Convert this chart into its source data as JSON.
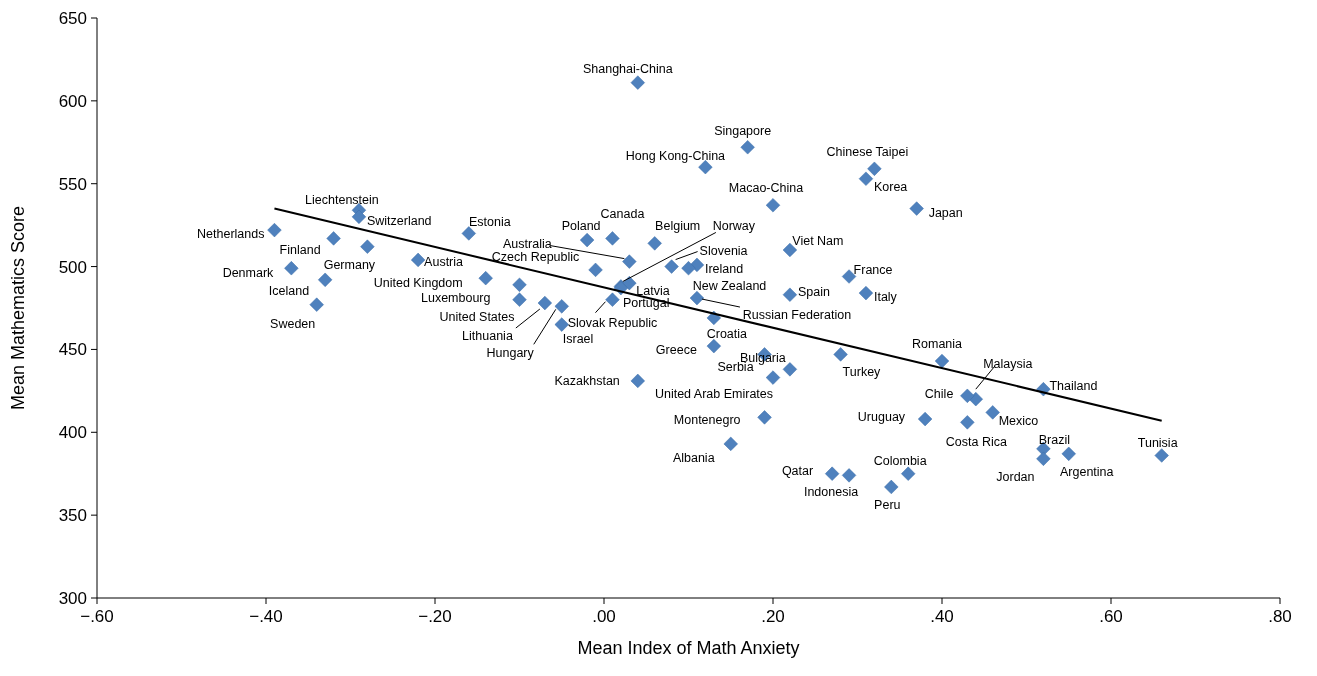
{
  "chart_data": {
    "type": "scatter",
    "xlabel": "Mean Index of Math Anxiety",
    "ylabel": "Mean Mathematics Score",
    "xlim": [
      -0.6,
      0.8
    ],
    "xticks": [
      {
        "value": -0.6,
        "label": "−.60"
      },
      {
        "value": -0.4,
        "label": "−.40"
      },
      {
        "value": -0.2,
        "label": "−.20"
      },
      {
        "value": 0,
        "label": ".00"
      },
      {
        "value": 0.2,
        "label": ".20"
      },
      {
        "value": 0.4,
        "label": ".40"
      },
      {
        "value": 0.6,
        "label": ".60"
      },
      {
        "value": 0.8,
        "label": ".80"
      }
    ],
    "ylim": [
      300,
      650
    ],
    "yticks": [
      300,
      350,
      400,
      450,
      500,
      550,
      600,
      650
    ],
    "marker": "diamond",
    "series": [
      {
        "type": "scatter",
        "color": "#4f81bd",
        "x": [
          0.04,
          0.17,
          0.12,
          0.32,
          0.31,
          0.2,
          0.37,
          -0.29,
          -0.29,
          -0.39,
          -0.32,
          -0.28,
          -0.16,
          -0.02,
          0.01,
          0.06,
          0.22,
          0.03,
          0.02,
          0.08,
          0.11,
          -0.37,
          -0.33,
          -0.34,
          -0.22,
          -0.01,
          0.1,
          0.29,
          -0.14,
          -0.1,
          -0.1,
          -0.07,
          -0.05,
          -0.05,
          0.03,
          0.02,
          0.01,
          0.22,
          0.31,
          0.11,
          0.13,
          0.13,
          0.19,
          0.22,
          0.28,
          0.4,
          0.2,
          0.04,
          0.44,
          0.43,
          0.52,
          0.46,
          0.19,
          0.38,
          0.43,
          0.15,
          0.52,
          0.55,
          0.66,
          0.52,
          0.27,
          0.29,
          0.36,
          0.34
        ],
        "values": [
          611,
          572,
          560,
          559,
          553,
          537,
          535,
          534,
          530,
          522,
          517,
          512,
          520,
          516,
          517,
          514,
          510,
          503,
          488,
          500,
          501,
          499,
          492,
          477,
          504,
          498,
          499,
          494,
          493,
          489,
          480,
          478,
          476,
          465,
          490,
          487,
          480,
          483,
          484,
          481,
          469,
          452,
          447,
          438,
          447,
          443,
          433,
          431,
          420,
          422,
          426,
          412,
          409,
          408,
          406,
          393,
          390,
          387,
          386,
          384,
          375,
          374,
          375,
          367
        ]
      },
      {
        "type": "line",
        "color": "#000000",
        "marker": "none",
        "line_style": "solid",
        "x": [
          -0.39,
          0.66
        ],
        "values": [
          535,
          407
        ]
      }
    ],
    "annotations": [
      {
        "text": "Shanghai-China",
        "x": 0.04,
        "y": 611
      },
      {
        "text": "Singapore",
        "x": 0.17,
        "y": 572
      },
      {
        "text": "Hong Kong-China",
        "x": 0.12,
        "y": 560
      },
      {
        "text": "Chinese Taipei",
        "x": 0.32,
        "y": 559
      },
      {
        "text": "Korea",
        "x": 0.31,
        "y": 553
      },
      {
        "text": "Macao-China",
        "x": 0.2,
        "y": 537
      },
      {
        "text": "Japan",
        "x": 0.37,
        "y": 535
      },
      {
        "text": "Liechtenstein",
        "x": -0.29,
        "y": 534
      },
      {
        "text": "Switzerland",
        "x": -0.29,
        "y": 530
      },
      {
        "text": "Netherlands",
        "x": -0.39,
        "y": 522
      },
      {
        "text": "Finland",
        "x": -0.32,
        "y": 517
      },
      {
        "text": "Germany",
        "x": -0.28,
        "y": 512
      },
      {
        "text": "Estonia",
        "x": -0.16,
        "y": 520
      },
      {
        "text": "Poland",
        "x": -0.02,
        "y": 516
      },
      {
        "text": "Canada",
        "x": 0.01,
        "y": 517
      },
      {
        "text": "Belgium",
        "x": 0.06,
        "y": 514
      },
      {
        "text": "Viet Nam",
        "x": 0.22,
        "y": 510
      },
      {
        "text": "Australia",
        "x": 0.03,
        "y": 503
      },
      {
        "text": "Norway",
        "x": 0.02,
        "y": 488
      },
      {
        "text": "Slovenia",
        "x": 0.08,
        "y": 500
      },
      {
        "text": "Ireland",
        "x": 0.11,
        "y": 501
      },
      {
        "text": "Denmark",
        "x": -0.37,
        "y": 499
      },
      {
        "text": "Iceland",
        "x": -0.33,
        "y": 492
      },
      {
        "text": "Sweden",
        "x": -0.34,
        "y": 477
      },
      {
        "text": "Austria",
        "x": -0.22,
        "y": 504
      },
      {
        "text": "Czech Republic",
        "x": -0.01,
        "y": 498
      },
      {
        "text": "New Zealand",
        "x": 0.1,
        "y": 499
      },
      {
        "text": "France",
        "x": 0.29,
        "y": 494
      },
      {
        "text": "United Kingdom",
        "x": -0.14,
        "y": 493
      },
      {
        "text": "Luxembourg",
        "x": -0.1,
        "y": 489
      },
      {
        "text": "United States",
        "x": -0.1,
        "y": 480
      },
      {
        "text": "Lithuania",
        "x": -0.07,
        "y": 478
      },
      {
        "text": "Hungary",
        "x": -0.05,
        "y": 476
      },
      {
        "text": "Israel",
        "x": -0.05,
        "y": 465
      },
      {
        "text": "Latvia",
        "x": 0.03,
        "y": 490
      },
      {
        "text": "Portugal",
        "x": 0.02,
        "y": 487
      },
      {
        "text": "Slovak Republic",
        "x": 0.01,
        "y": 480
      },
      {
        "text": "Spain",
        "x": 0.22,
        "y": 483
      },
      {
        "text": "Italy",
        "x": 0.31,
        "y": 484
      },
      {
        "text": "Russian Federation",
        "x": 0.11,
        "y": 481
      },
      {
        "text": "Croatia",
        "x": 0.13,
        "y": 469
      },
      {
        "text": "Greece",
        "x": 0.13,
        "y": 452
      },
      {
        "text": "Serbia",
        "x": 0.19,
        "y": 447
      },
      {
        "text": "Bulgaria",
        "x": 0.22,
        "y": 438
      },
      {
        "text": "Turkey",
        "x": 0.28,
        "y": 447
      },
      {
        "text": "Romania",
        "x": 0.4,
        "y": 443
      },
      {
        "text": "United Arab Emirates",
        "x": 0.2,
        "y": 433
      },
      {
        "text": "Kazakhstan",
        "x": 0.04,
        "y": 431
      },
      {
        "text": "Malaysia",
        "x": 0.44,
        "y": 420
      },
      {
        "text": "Chile",
        "x": 0.43,
        "y": 422
      },
      {
        "text": "Thailand",
        "x": 0.52,
        "y": 426
      },
      {
        "text": "Mexico",
        "x": 0.46,
        "y": 412
      },
      {
        "text": "Montenegro",
        "x": 0.19,
        "y": 409
      },
      {
        "text": "Uruguay",
        "x": 0.38,
        "y": 408
      },
      {
        "text": "Costa Rica",
        "x": 0.43,
        "y": 406
      },
      {
        "text": "Albania",
        "x": 0.15,
        "y": 393
      },
      {
        "text": "Brazil",
        "x": 0.52,
        "y": 390
      },
      {
        "text": "Argentina",
        "x": 0.55,
        "y": 387
      },
      {
        "text": "Tunisia",
        "x": 0.66,
        "y": 386
      },
      {
        "text": "Jordan",
        "x": 0.52,
        "y": 384
      },
      {
        "text": "Qatar",
        "x": 0.27,
        "y": 375
      },
      {
        "text": "Indonesia",
        "x": 0.29,
        "y": 374
      },
      {
        "text": "Colombia",
        "x": 0.36,
        "y": 375
      },
      {
        "text": "Peru",
        "x": 0.34,
        "y": 367
      }
    ]
  }
}
